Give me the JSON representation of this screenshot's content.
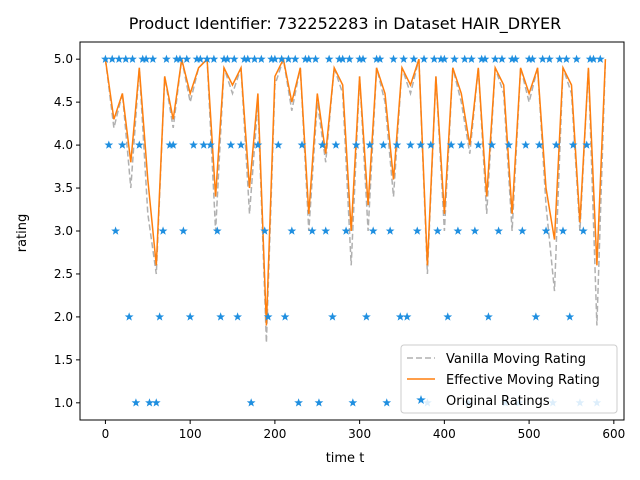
{
  "chart_data": {
    "type": "line",
    "title": "Product Identifier: 732252283 in Dataset HAIR_DRYER",
    "xlabel": "time t",
    "ylabel": "rating",
    "xlim": [
      -30,
      612
    ],
    "ylim": [
      0.8,
      5.2
    ],
    "x_ticks": [
      0,
      100,
      200,
      300,
      400,
      500,
      600
    ],
    "y_ticks": [
      1.0,
      1.5,
      2.0,
      2.5,
      3.0,
      3.5,
      4.0,
      4.5,
      5.0
    ],
    "grid": false,
    "legend_position": "lower right",
    "series": [
      {
        "name": "Vanilla Moving Rating",
        "style": "dashed",
        "color": "#b0b0b0",
        "x": [
          0,
          10,
          20,
          30,
          40,
          50,
          60,
          70,
          80,
          90,
          100,
          110,
          120,
          130,
          140,
          150,
          160,
          170,
          180,
          190,
          200,
          210,
          220,
          230,
          240,
          250,
          260,
          270,
          280,
          290,
          300,
          310,
          320,
          330,
          340,
          350,
          360,
          370,
          380,
          390,
          400,
          410,
          420,
          430,
          440,
          450,
          460,
          470,
          480,
          490,
          500,
          510,
          520,
          530,
          540,
          550,
          560,
          570,
          580,
          590
        ],
        "values": [
          5.0,
          4.2,
          4.6,
          3.5,
          4.9,
          3.2,
          2.5,
          4.8,
          4.2,
          5.0,
          4.5,
          4.9,
          5.0,
          3.0,
          4.9,
          4.6,
          4.9,
          3.2,
          4.5,
          1.7,
          4.7,
          5.0,
          4.4,
          4.9,
          3.0,
          4.5,
          3.8,
          4.9,
          4.6,
          2.6,
          4.8,
          3.0,
          4.9,
          4.5,
          3.4,
          4.9,
          4.6,
          5.0,
          2.5,
          4.8,
          3.0,
          4.9,
          4.5,
          3.9,
          4.9,
          3.2,
          4.9,
          4.6,
          3.0,
          4.9,
          4.5,
          4.9,
          3.3,
          2.3,
          4.9,
          4.6,
          3.0,
          4.9,
          1.9,
          5.0
        ]
      },
      {
        "name": "Effective Moving Rating",
        "style": "solid",
        "color": "#ff7f0e",
        "x": [
          0,
          10,
          20,
          30,
          40,
          50,
          60,
          70,
          80,
          90,
          100,
          110,
          120,
          130,
          140,
          150,
          160,
          170,
          180,
          190,
          200,
          210,
          220,
          230,
          240,
          250,
          260,
          270,
          280,
          290,
          300,
          310,
          320,
          330,
          340,
          350,
          360,
          370,
          380,
          390,
          400,
          410,
          420,
          430,
          440,
          450,
          460,
          470,
          480,
          490,
          500,
          510,
          520,
          530,
          540,
          550,
          560,
          570,
          580,
          590
        ],
        "values": [
          5.0,
          4.3,
          4.6,
          3.8,
          4.9,
          3.6,
          2.6,
          4.8,
          4.3,
          5.0,
          4.6,
          4.9,
          5.0,
          3.4,
          4.9,
          4.7,
          4.9,
          3.5,
          4.6,
          1.9,
          4.8,
          5.0,
          4.5,
          4.9,
          3.2,
          4.6,
          3.9,
          4.9,
          4.7,
          3.0,
          4.8,
          3.3,
          4.9,
          4.6,
          3.6,
          4.9,
          4.7,
          5.0,
          2.6,
          4.8,
          3.2,
          4.9,
          4.6,
          4.0,
          4.9,
          3.4,
          4.9,
          4.7,
          3.2,
          4.9,
          4.6,
          4.9,
          3.5,
          2.9,
          4.9,
          4.7,
          3.1,
          4.9,
          2.6,
          5.0
        ]
      },
      {
        "name": "Original Ratings",
        "style": "marker-star",
        "color": "#1f8fe0",
        "x": [
          0,
          4,
          8,
          12,
          16,
          20,
          24,
          28,
          32,
          36,
          40,
          44,
          48,
          52,
          56,
          60,
          64,
          68,
          72,
          76,
          80,
          84,
          88,
          92,
          96,
          100,
          104,
          108,
          112,
          116,
          120,
          124,
          128,
          132,
          136,
          140,
          144,
          148,
          152,
          156,
          160,
          164,
          168,
          172,
          176,
          180,
          184,
          188,
          192,
          196,
          200,
          204,
          208,
          212,
          216,
          220,
          224,
          228,
          232,
          236,
          240,
          244,
          248,
          252,
          256,
          260,
          264,
          268,
          272,
          276,
          280,
          284,
          288,
          292,
          296,
          300,
          304,
          308,
          312,
          316,
          320,
          324,
          328,
          332,
          336,
          340,
          344,
          348,
          352,
          356,
          360,
          364,
          368,
          372,
          376,
          380,
          384,
          388,
          392,
          396,
          400,
          404,
          408,
          412,
          416,
          420,
          424,
          428,
          432,
          436,
          440,
          444,
          448,
          452,
          456,
          460,
          464,
          468,
          472,
          476,
          480,
          484,
          488,
          492,
          496,
          500,
          504,
          508,
          512,
          516,
          520,
          524,
          528,
          532,
          536,
          540,
          544,
          548,
          552,
          556,
          560,
          564,
          568,
          572,
          576,
          580,
          584
        ],
        "values": [
          5,
          4,
          5,
          3,
          5,
          4,
          5,
          2,
          5,
          1,
          4,
          5,
          5,
          1,
          5,
          1,
          2,
          3,
          5,
          4,
          4,
          5,
          5,
          3,
          5,
          2,
          4,
          5,
          5,
          4,
          5,
          4,
          5,
          3,
          2,
          5,
          5,
          4,
          5,
          2,
          4,
          5,
          5,
          1,
          5,
          4,
          5,
          3,
          2,
          5,
          5,
          4,
          5,
          2,
          5,
          3,
          5,
          1,
          4,
          5,
          5,
          3,
          5,
          1,
          4,
          3,
          5,
          2,
          4,
          5,
          5,
          3,
          5,
          1,
          4,
          5,
          5,
          2,
          4,
          3,
          5,
          5,
          4,
          1,
          3,
          5,
          4,
          2,
          5,
          2,
          4,
          5,
          3,
          4,
          5,
          1,
          4,
          5,
          3,
          5,
          5,
          2,
          4,
          5,
          3,
          4,
          5,
          1,
          5,
          3,
          4,
          5,
          5,
          2,
          4,
          5,
          3,
          5,
          1,
          4,
          5,
          5,
          1,
          3,
          4,
          5,
          5,
          2,
          4,
          5,
          3,
          5,
          1,
          4,
          5,
          3,
          5,
          2,
          4,
          5,
          1,
          3,
          4,
          5,
          5,
          1,
          5
        ]
      }
    ]
  }
}
